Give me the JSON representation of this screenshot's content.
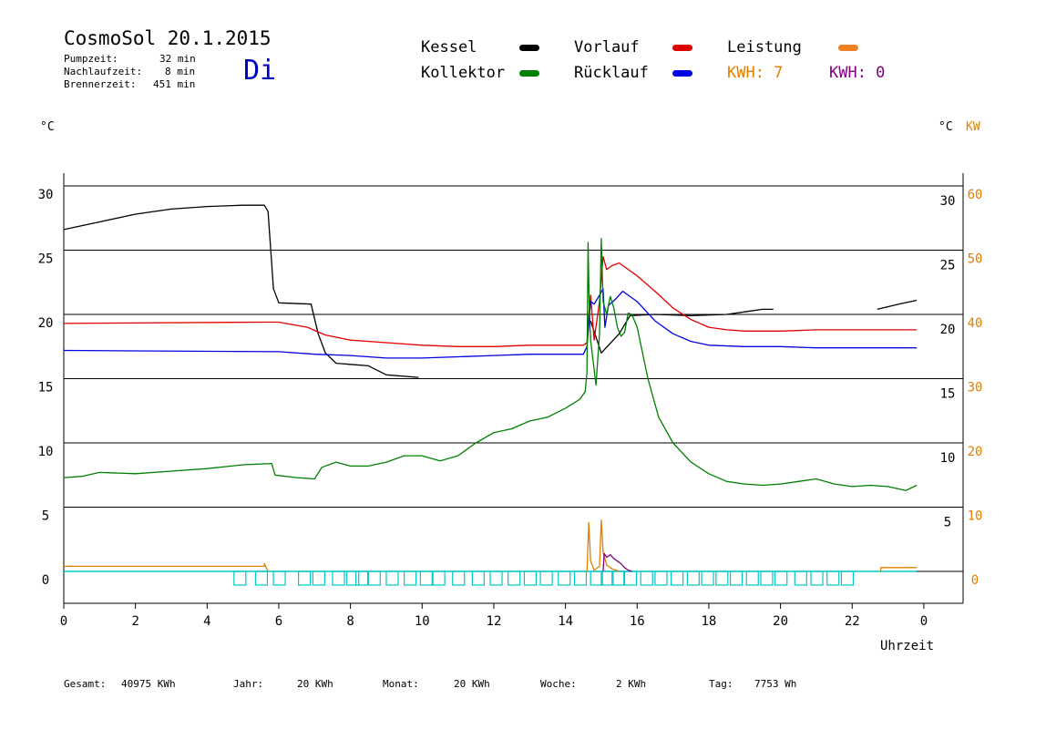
{
  "header": {
    "title": "CosmoSol 20.1.2015",
    "day": "Di",
    "pumpzeit_label": "Pumpzeit:",
    "pumpzeit_value": "32 min",
    "nachlauf_label": "Nachlaufzeit:",
    "nachlauf_value": "8 min",
    "brenner_label": "Brennerzeit:",
    "brenner_value": "451 min"
  },
  "legend": {
    "kessel": "Kessel",
    "kollektor": "Kollektor",
    "vorlauf": "Vorlauf",
    "ruecklauf": "Rücklauf",
    "leistung": "Leistung",
    "kwh1": "KWH: 7",
    "kwh2": "KWH: 0"
  },
  "colors": {
    "kessel": "#000000",
    "kollektor": "#008000",
    "vorlauf": "#e00000",
    "ruecklauf": "#0000e0",
    "leistung": "#e08000",
    "kwh2": "#800080",
    "pump": "#00c8c8",
    "day": "#0000c0"
  },
  "axes": {
    "left_unit": "°C",
    "right_unit": "°C",
    "right_unit2": "KW",
    "xlabel": "Uhrzeit"
  },
  "footer": {
    "gesamt_label": "Gesamt:",
    "gesamt_value": "40975 KWh",
    "jahr_label": "Jahr:",
    "jahr_value": "20 KWh",
    "monat_label": "Monat:",
    "monat_value": "20 KWh",
    "woche_label": "Woche:",
    "woche_value": "2 KWh",
    "tag_label": "Tag:",
    "tag_value": "7753 Wh"
  },
  "chart_data": {
    "type": "line",
    "xlabel": "Uhrzeit",
    "ylabel": "°C",
    "xlim": [
      0,
      24
    ],
    "ylim": [
      -2.5,
      33
    ],
    "grid": true,
    "x_ticks": [
      "0",
      "2",
      "4",
      "6",
      "8",
      "10",
      "12",
      "14",
      "16",
      "18",
      "20",
      "22",
      "0"
    ],
    "y_ticks_left": [
      "0",
      "5",
      "10",
      "15",
      "20",
      "25",
      "30"
    ],
    "y_ticks_right": [
      "5",
      "10",
      "15",
      "20",
      "25",
      "30"
    ],
    "y_ticks_kw": [
      "0",
      "10",
      "20",
      "30",
      "40",
      "50",
      "60"
    ],
    "series": [
      {
        "name": "Kessel",
        "color": "#000000",
        "segments": [
          [
            [
              0,
              26.6
            ],
            [
              1,
              27.2
            ],
            [
              2,
              27.8
            ],
            [
              3,
              28.2
            ],
            [
              4,
              28.4
            ],
            [
              5,
              28.5
            ],
            [
              5.6,
              28.5
            ],
            [
              5.7,
              28
            ],
            [
              5.85,
              22
            ],
            [
              6,
              20.9
            ],
            [
              6.9,
              20.8
            ],
            [
              7.1,
              18.5
            ],
            [
              7.3,
              17
            ],
            [
              7.6,
              16.2
            ],
            [
              8.5,
              16
            ],
            [
              9,
              15.3
            ],
            [
              9.9,
              15.1
            ]
          ],
          [
            [
              14.7,
              19.5
            ],
            [
              15,
              17
            ],
            [
              15.5,
              18.5
            ],
            [
              15.8,
              19.9
            ],
            [
              16.5,
              20
            ],
            [
              17.5,
              19.9
            ],
            [
              18.5,
              20
            ],
            [
              19,
              20.2
            ],
            [
              19.5,
              20.4
            ],
            [
              19.8,
              20.4
            ]
          ],
          [
            [
              22.7,
              20.4
            ],
            [
              23.3,
              20.8
            ],
            [
              23.8,
              21.1
            ]
          ]
        ]
      },
      {
        "name": "Vorlauf",
        "color": "#e00000",
        "segments": [
          [
            [
              0,
              19.3
            ],
            [
              5.5,
              19.4
            ],
            [
              6,
              19.4
            ],
            [
              6.8,
              19
            ],
            [
              7.3,
              18.4
            ],
            [
              8,
              18
            ],
            [
              9,
              17.8
            ],
            [
              10,
              17.6
            ],
            [
              11,
              17.5
            ],
            [
              12,
              17.5
            ],
            [
              13,
              17.6
            ],
            [
              14.5,
              17.6
            ],
            [
              14.6,
              17.8
            ],
            [
              14.65,
              20
            ],
            [
              14.7,
              21.5
            ],
            [
              14.8,
              18
            ],
            [
              14.95,
              21
            ],
            [
              15.05,
              24.5
            ],
            [
              15.15,
              23.5
            ],
            [
              15.3,
              23.8
            ],
            [
              15.5,
              24
            ],
            [
              16,
              23
            ],
            [
              16.5,
              21.8
            ],
            [
              17,
              20.5
            ],
            [
              17.5,
              19.6
            ],
            [
              18,
              19
            ],
            [
              18.5,
              18.8
            ],
            [
              19,
              18.7
            ],
            [
              20,
              18.7
            ],
            [
              21,
              18.8
            ],
            [
              22,
              18.8
            ],
            [
              23,
              18.8
            ],
            [
              23.8,
              18.8
            ]
          ]
        ]
      },
      {
        "name": "Rücklauf",
        "color": "#0000e0",
        "segments": [
          [
            [
              0,
              17.2
            ],
            [
              6,
              17.1
            ],
            [
              7,
              16.9
            ],
            [
              8,
              16.8
            ],
            [
              9,
              16.6
            ],
            [
              10,
              16.6
            ],
            [
              11,
              16.7
            ],
            [
              12,
              16.8
            ],
            [
              13,
              16.9
            ],
            [
              14.5,
              16.9
            ],
            [
              14.6,
              17.5
            ],
            [
              14.7,
              21
            ],
            [
              14.8,
              20.8
            ],
            [
              14.95,
              21.5
            ],
            [
              15.05,
              22
            ],
            [
              15.1,
              19
            ],
            [
              15.2,
              20.7
            ],
            [
              15.4,
              21.2
            ],
            [
              15.6,
              21.8
            ],
            [
              16,
              21
            ],
            [
              16.5,
              19.5
            ],
            [
              17,
              18.5
            ],
            [
              17.5,
              17.9
            ],
            [
              18,
              17.6
            ],
            [
              19,
              17.5
            ],
            [
              20,
              17.5
            ],
            [
              21,
              17.4
            ],
            [
              22,
              17.4
            ],
            [
              23,
              17.4
            ],
            [
              23.8,
              17.4
            ]
          ]
        ]
      },
      {
        "name": "Kollektor",
        "color": "#008000",
        "segments": [
          [
            [
              0,
              7.3
            ],
            [
              0.5,
              7.4
            ],
            [
              1,
              7.7
            ],
            [
              2,
              7.6
            ],
            [
              3,
              7.8
            ],
            [
              4,
              8
            ],
            [
              5,
              8.3
            ],
            [
              5.8,
              8.4
            ],
            [
              5.9,
              7.5
            ],
            [
              6.5,
              7.3
            ],
            [
              7,
              7.2
            ],
            [
              7.2,
              8.1
            ],
            [
              7.6,
              8.5
            ],
            [
              8,
              8.2
            ],
            [
              8.5,
              8.2
            ],
            [
              9,
              8.5
            ],
            [
              9.5,
              9
            ],
            [
              10,
              9
            ],
            [
              10.5,
              8.6
            ],
            [
              11,
              9
            ],
            [
              11.5,
              10
            ],
            [
              12,
              10.8
            ],
            [
              12.5,
              11.1
            ],
            [
              13,
              11.7
            ],
            [
              13.5,
              12
            ],
            [
              14,
              12.7
            ],
            [
              14.4,
              13.4
            ],
            [
              14.55,
              14
            ],
            [
              14.6,
              15.5
            ],
            [
              14.63,
              25.6
            ],
            [
              14.66,
              21
            ],
            [
              14.7,
              18
            ],
            [
              14.85,
              14.5
            ],
            [
              14.95,
              18.5
            ],
            [
              15.0,
              25.9
            ],
            [
              15.05,
              21
            ],
            [
              15.15,
              20
            ],
            [
              15.25,
              21.4
            ],
            [
              15.35,
              20.5
            ],
            [
              15.45,
              19
            ],
            [
              15.55,
              18.3
            ],
            [
              15.65,
              18.6
            ],
            [
              15.75,
              20.1
            ],
            [
              15.85,
              20
            ],
            [
              16,
              19
            ],
            [
              16.3,
              15
            ],
            [
              16.6,
              12
            ],
            [
              17,
              10
            ],
            [
              17.5,
              8.5
            ],
            [
              18,
              7.6
            ],
            [
              18.5,
              7
            ],
            [
              19,
              6.8
            ],
            [
              19.5,
              6.7
            ],
            [
              20,
              6.8
            ],
            [
              20.5,
              7
            ],
            [
              21,
              7.2
            ],
            [
              21.5,
              6.8
            ],
            [
              22,
              6.6
            ],
            [
              22.5,
              6.7
            ],
            [
              23,
              6.6
            ],
            [
              23.5,
              6.3
            ],
            [
              23.8,
              6.7
            ]
          ]
        ]
      },
      {
        "name": "Leistung",
        "color": "#e08000",
        "segments": [
          [
            [
              0,
              0.4
            ],
            [
              5.6,
              0.4
            ],
            [
              5.6,
              0.6
            ],
            [
              5.65,
              0.3
            ],
            [
              5.7,
              0
            ]
          ],
          [
            [
              14.6,
              0
            ],
            [
              14.65,
              3.8
            ],
            [
              14.7,
              0.8
            ],
            [
              14.8,
              0.1
            ],
            [
              14.95,
              0.4
            ],
            [
              15.0,
              4
            ],
            [
              15.05,
              1.5
            ],
            [
              15.15,
              0.5
            ],
            [
              15.3,
              0.2
            ],
            [
              15.5,
              0
            ]
          ],
          [
            [
              22.8,
              0
            ],
            [
              22.8,
              0.3
            ],
            [
              23.8,
              0.3
            ]
          ]
        ]
      },
      {
        "name": "KWH2",
        "color": "#800080",
        "segments": [
          [
            [
              15.05,
              0
            ],
            [
              15.08,
              1.4
            ],
            [
              15.15,
              1.1
            ],
            [
              15.25,
              1.3
            ],
            [
              15.35,
              1
            ],
            [
              15.45,
              0.8
            ],
            [
              15.55,
              0.6
            ],
            [
              15.65,
              0.3
            ],
            [
              15.75,
              0.1
            ],
            [
              15.85,
              0
            ]
          ]
        ]
      }
    ],
    "pump_starts": [
      4.75,
      5.35,
      5.85,
      6.55,
      6.95,
      7.5,
      7.9,
      8.15,
      8.5,
      9.0,
      9.5,
      9.95,
      10.3,
      10.85,
      11.4,
      11.9,
      12.4,
      12.85,
      13.3,
      13.8,
      14.25,
      14.7,
      15.0,
      15.3,
      15.65,
      16.1,
      16.5,
      16.95,
      17.4,
      17.8,
      18.2,
      18.6,
      19.05,
      19.45,
      19.85,
      20.4,
      20.85,
      21.3,
      21.7
    ]
  }
}
